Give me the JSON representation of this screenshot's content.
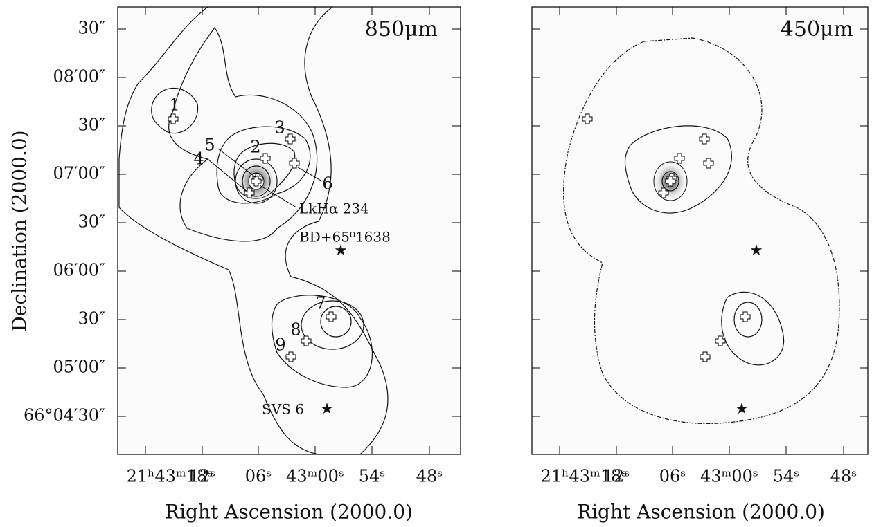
{
  "panels": [
    {
      "label": "850μm",
      "x_ticks": [
        "21ʰ43ᵐ18ˢ",
        "12ˢ",
        "06ˢ",
        "43ᵐ00ˢ",
        "54ˢ",
        "48ˢ"
      ],
      "y_ticks": [
        "30″",
        "08′00″",
        "30″",
        "07′00″",
        "30″",
        "06′00″",
        "30″",
        "05′00″",
        "66°04′30″"
      ],
      "x_axis_label": "Right Ascension (2000.0)",
      "y_axis_label": "Declination (2000.0)",
      "sources": [
        "1",
        "2",
        "3",
        "4",
        "5",
        "6",
        "7",
        "8",
        "9"
      ],
      "annotations": [
        "LkHα 234",
        "BD+65⁰1638",
        "SVS 6"
      ]
    },
    {
      "label": "450μm",
      "x_ticks": [
        "21ʰ43ᵐ18ˢ",
        "12ˢ",
        "06ˢ",
        "43ᵐ00ˢ",
        "54ˢ",
        "48ˢ"
      ],
      "x_axis_label": "Right Ascension (2000.0)"
    }
  ]
}
